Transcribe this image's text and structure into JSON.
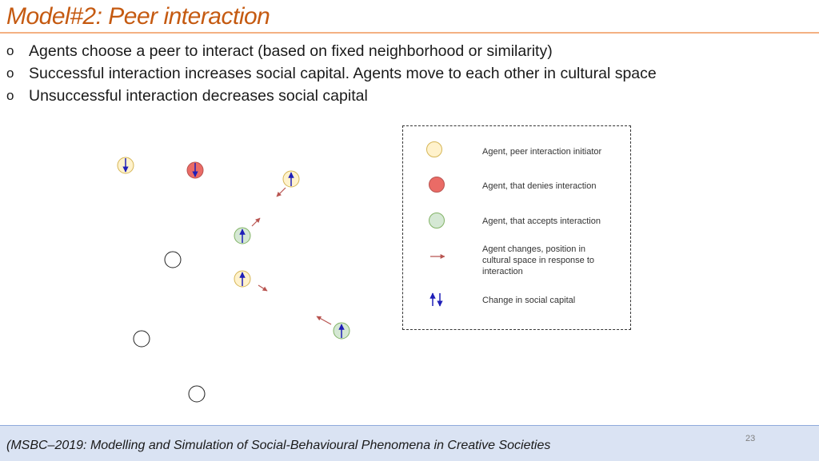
{
  "slide": {
    "title": "Model#2: Peer interaction",
    "bullet_marker": "o",
    "bullets": [
      "Agents choose a peer to interact (based on fixed neighborhood or similarity)",
      "Successful interaction increases social capital. Agents move to each other in cultural space",
      "Unsuccessful interaction decreases social capital"
    ]
  },
  "legend": {
    "items": [
      {
        "label": "Agent, peer interaction initiator"
      },
      {
        "label": "Agent, that denies interaction"
      },
      {
        "label": "Agent, that accepts interaction"
      },
      {
        "label_lines": [
          "Agent changes, position in",
          "cultural space in response to",
          "interaction"
        ]
      },
      {
        "label": "Change in social capital"
      }
    ]
  },
  "colors": {
    "initiator": "#fff2cc",
    "initiator_stroke": "#d6b656",
    "denies": "#ea6b66",
    "denies_stroke": "#b85450",
    "accepts": "#d5e8d4",
    "accepts_stroke": "#82b366",
    "neutral": "#ffffff",
    "neutral_stroke": "#222222",
    "move_arrow": "#b85450",
    "capital_arrow": "#1f1fb8",
    "title": "#c55a11"
  },
  "footer": {
    "citation": "(MSBC–2019: Modelling and Simulation of Social-Behavioural Phenomena in Creative Societies",
    "page_number": "23"
  }
}
